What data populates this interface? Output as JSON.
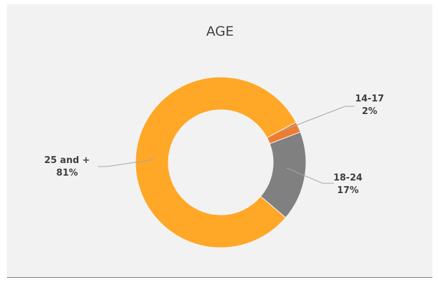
{
  "chart_data": {
    "type": "pie",
    "donut": true,
    "title": "AGE",
    "slices": [
      {
        "category": "14-17",
        "value": 2,
        "value_label": "2%",
        "color": "#ed7d31"
      },
      {
        "category": "18-24",
        "value": 17,
        "value_label": "17%",
        "color": "#808080"
      },
      {
        "category": "25 and +",
        "value": 81,
        "value_label": "81%",
        "color": "#ffa726"
      }
    ],
    "legend": "none",
    "background": "#f2f2f2"
  }
}
